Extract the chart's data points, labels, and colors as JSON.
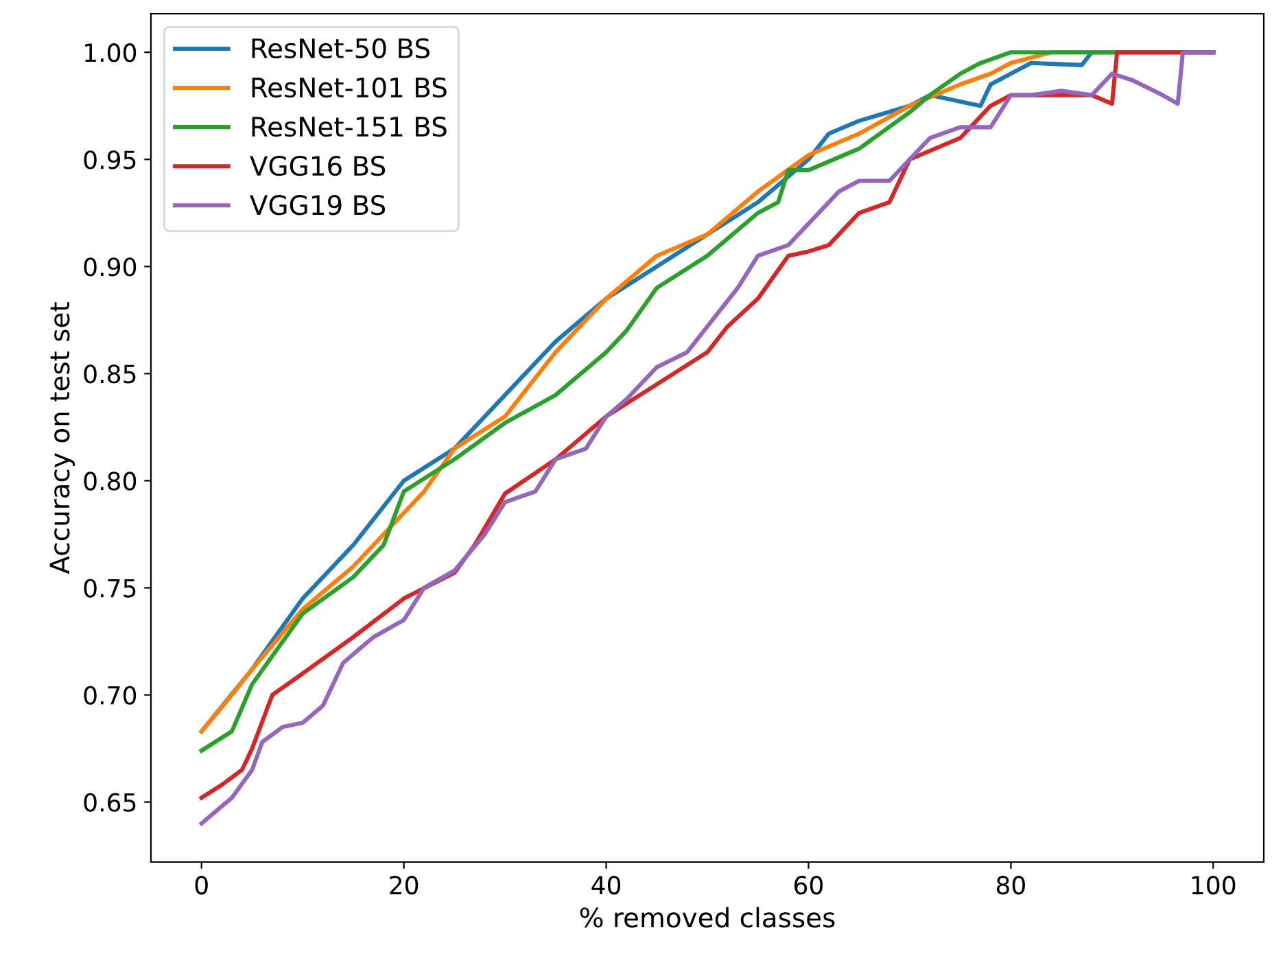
{
  "chart_data": {
    "type": "line",
    "xlabel": "% removed classes",
    "ylabel": "Accuracy on test set",
    "xlim": [
      -5,
      105
    ],
    "ylim": [
      0.622,
      1.018
    ],
    "xticks": [
      0,
      20,
      40,
      60,
      80,
      100
    ],
    "yticks": [
      {
        "value": 0.65,
        "label": "0.65"
      },
      {
        "value": 0.7,
        "label": "0.70"
      },
      {
        "value": 0.75,
        "label": "0.75"
      },
      {
        "value": 0.8,
        "label": "0.80"
      },
      {
        "value": 0.85,
        "label": "0.85"
      },
      {
        "value": 0.9,
        "label": "0.90"
      },
      {
        "value": 0.95,
        "label": "0.95"
      },
      {
        "value": 1.0,
        "label": "1.00"
      }
    ],
    "grid": false,
    "legend": "top left",
    "marker": "none",
    "line_style": "solid",
    "series": [
      {
        "name": "ResNet-50 BS",
        "color": "#1f77b4",
        "x": [
          0,
          5,
          10,
          15,
          20,
          25,
          30,
          35,
          40,
          45,
          50,
          55,
          60,
          62,
          65,
          70,
          72,
          75,
          77,
          78,
          80,
          82,
          87,
          88,
          100
        ],
        "values": [
          0.683,
          0.712,
          0.745,
          0.77,
          0.8,
          0.815,
          0.84,
          0.865,
          0.885,
          0.9,
          0.915,
          0.93,
          0.95,
          0.962,
          0.968,
          0.975,
          0.98,
          0.977,
          0.975,
          0.985,
          0.99,
          0.995,
          0.994,
          1.0,
          1.0
        ]
      },
      {
        "name": "ResNet-101 BS",
        "color": "#ff7f0e",
        "x": [
          0,
          3,
          5,
          10,
          15,
          20,
          22,
          25,
          30,
          35,
          40,
          45,
          50,
          55,
          60,
          65,
          70,
          75,
          78,
          80,
          84,
          100
        ],
        "values": [
          0.683,
          0.7,
          0.712,
          0.74,
          0.76,
          0.785,
          0.795,
          0.815,
          0.83,
          0.86,
          0.885,
          0.905,
          0.915,
          0.935,
          0.952,
          0.962,
          0.975,
          0.985,
          0.99,
          0.995,
          1.0,
          1.0
        ]
      },
      {
        "name": "ResNet-151 BS",
        "color": "#2ca02c",
        "x": [
          0,
          3,
          5,
          10,
          15,
          18,
          20,
          25,
          30,
          35,
          40,
          42,
          45,
          50,
          55,
          57,
          58,
          60,
          65,
          70,
          72,
          75,
          77,
          80,
          100
        ],
        "values": [
          0.674,
          0.683,
          0.705,
          0.738,
          0.755,
          0.77,
          0.795,
          0.81,
          0.827,
          0.84,
          0.86,
          0.87,
          0.89,
          0.905,
          0.925,
          0.93,
          0.945,
          0.945,
          0.955,
          0.972,
          0.98,
          0.99,
          0.995,
          1.0,
          1.0
        ]
      },
      {
        "name": "VGG16 BS",
        "color": "#d62728",
        "x": [
          0,
          2,
          4,
          5,
          7,
          10,
          15,
          20,
          25,
          27,
          30,
          35,
          40,
          45,
          50,
          52,
          55,
          58,
          60,
          62,
          65,
          68,
          70,
          75,
          78,
          80,
          85,
          88,
          90,
          90.5,
          100
        ],
        "values": [
          0.652,
          0.658,
          0.665,
          0.675,
          0.7,
          0.71,
          0.727,
          0.745,
          0.757,
          0.77,
          0.794,
          0.81,
          0.83,
          0.845,
          0.86,
          0.872,
          0.885,
          0.905,
          0.907,
          0.91,
          0.925,
          0.93,
          0.95,
          0.96,
          0.975,
          0.98,
          0.98,
          0.98,
          0.976,
          1.0,
          1.0
        ]
      },
      {
        "name": "VGG19 BS",
        "color": "#9467bd",
        "x": [
          0,
          3,
          5,
          6,
          8,
          10,
          12,
          14,
          17,
          20,
          22,
          25,
          28,
          30,
          33,
          35,
          38,
          40,
          42,
          45,
          48,
          50,
          53,
          55,
          58,
          60,
          63,
          65,
          68,
          70,
          72,
          75,
          78,
          80,
          82,
          85,
          88,
          90,
          92,
          95,
          96.5,
          97,
          100
        ],
        "values": [
          0.64,
          0.652,
          0.665,
          0.678,
          0.685,
          0.687,
          0.695,
          0.715,
          0.727,
          0.735,
          0.75,
          0.758,
          0.775,
          0.79,
          0.795,
          0.81,
          0.815,
          0.83,
          0.838,
          0.853,
          0.86,
          0.872,
          0.89,
          0.905,
          0.91,
          0.92,
          0.935,
          0.94,
          0.94,
          0.95,
          0.96,
          0.965,
          0.965,
          0.98,
          0.98,
          0.982,
          0.98,
          0.99,
          0.987,
          0.98,
          0.976,
          1.0,
          1.0
        ]
      }
    ]
  }
}
